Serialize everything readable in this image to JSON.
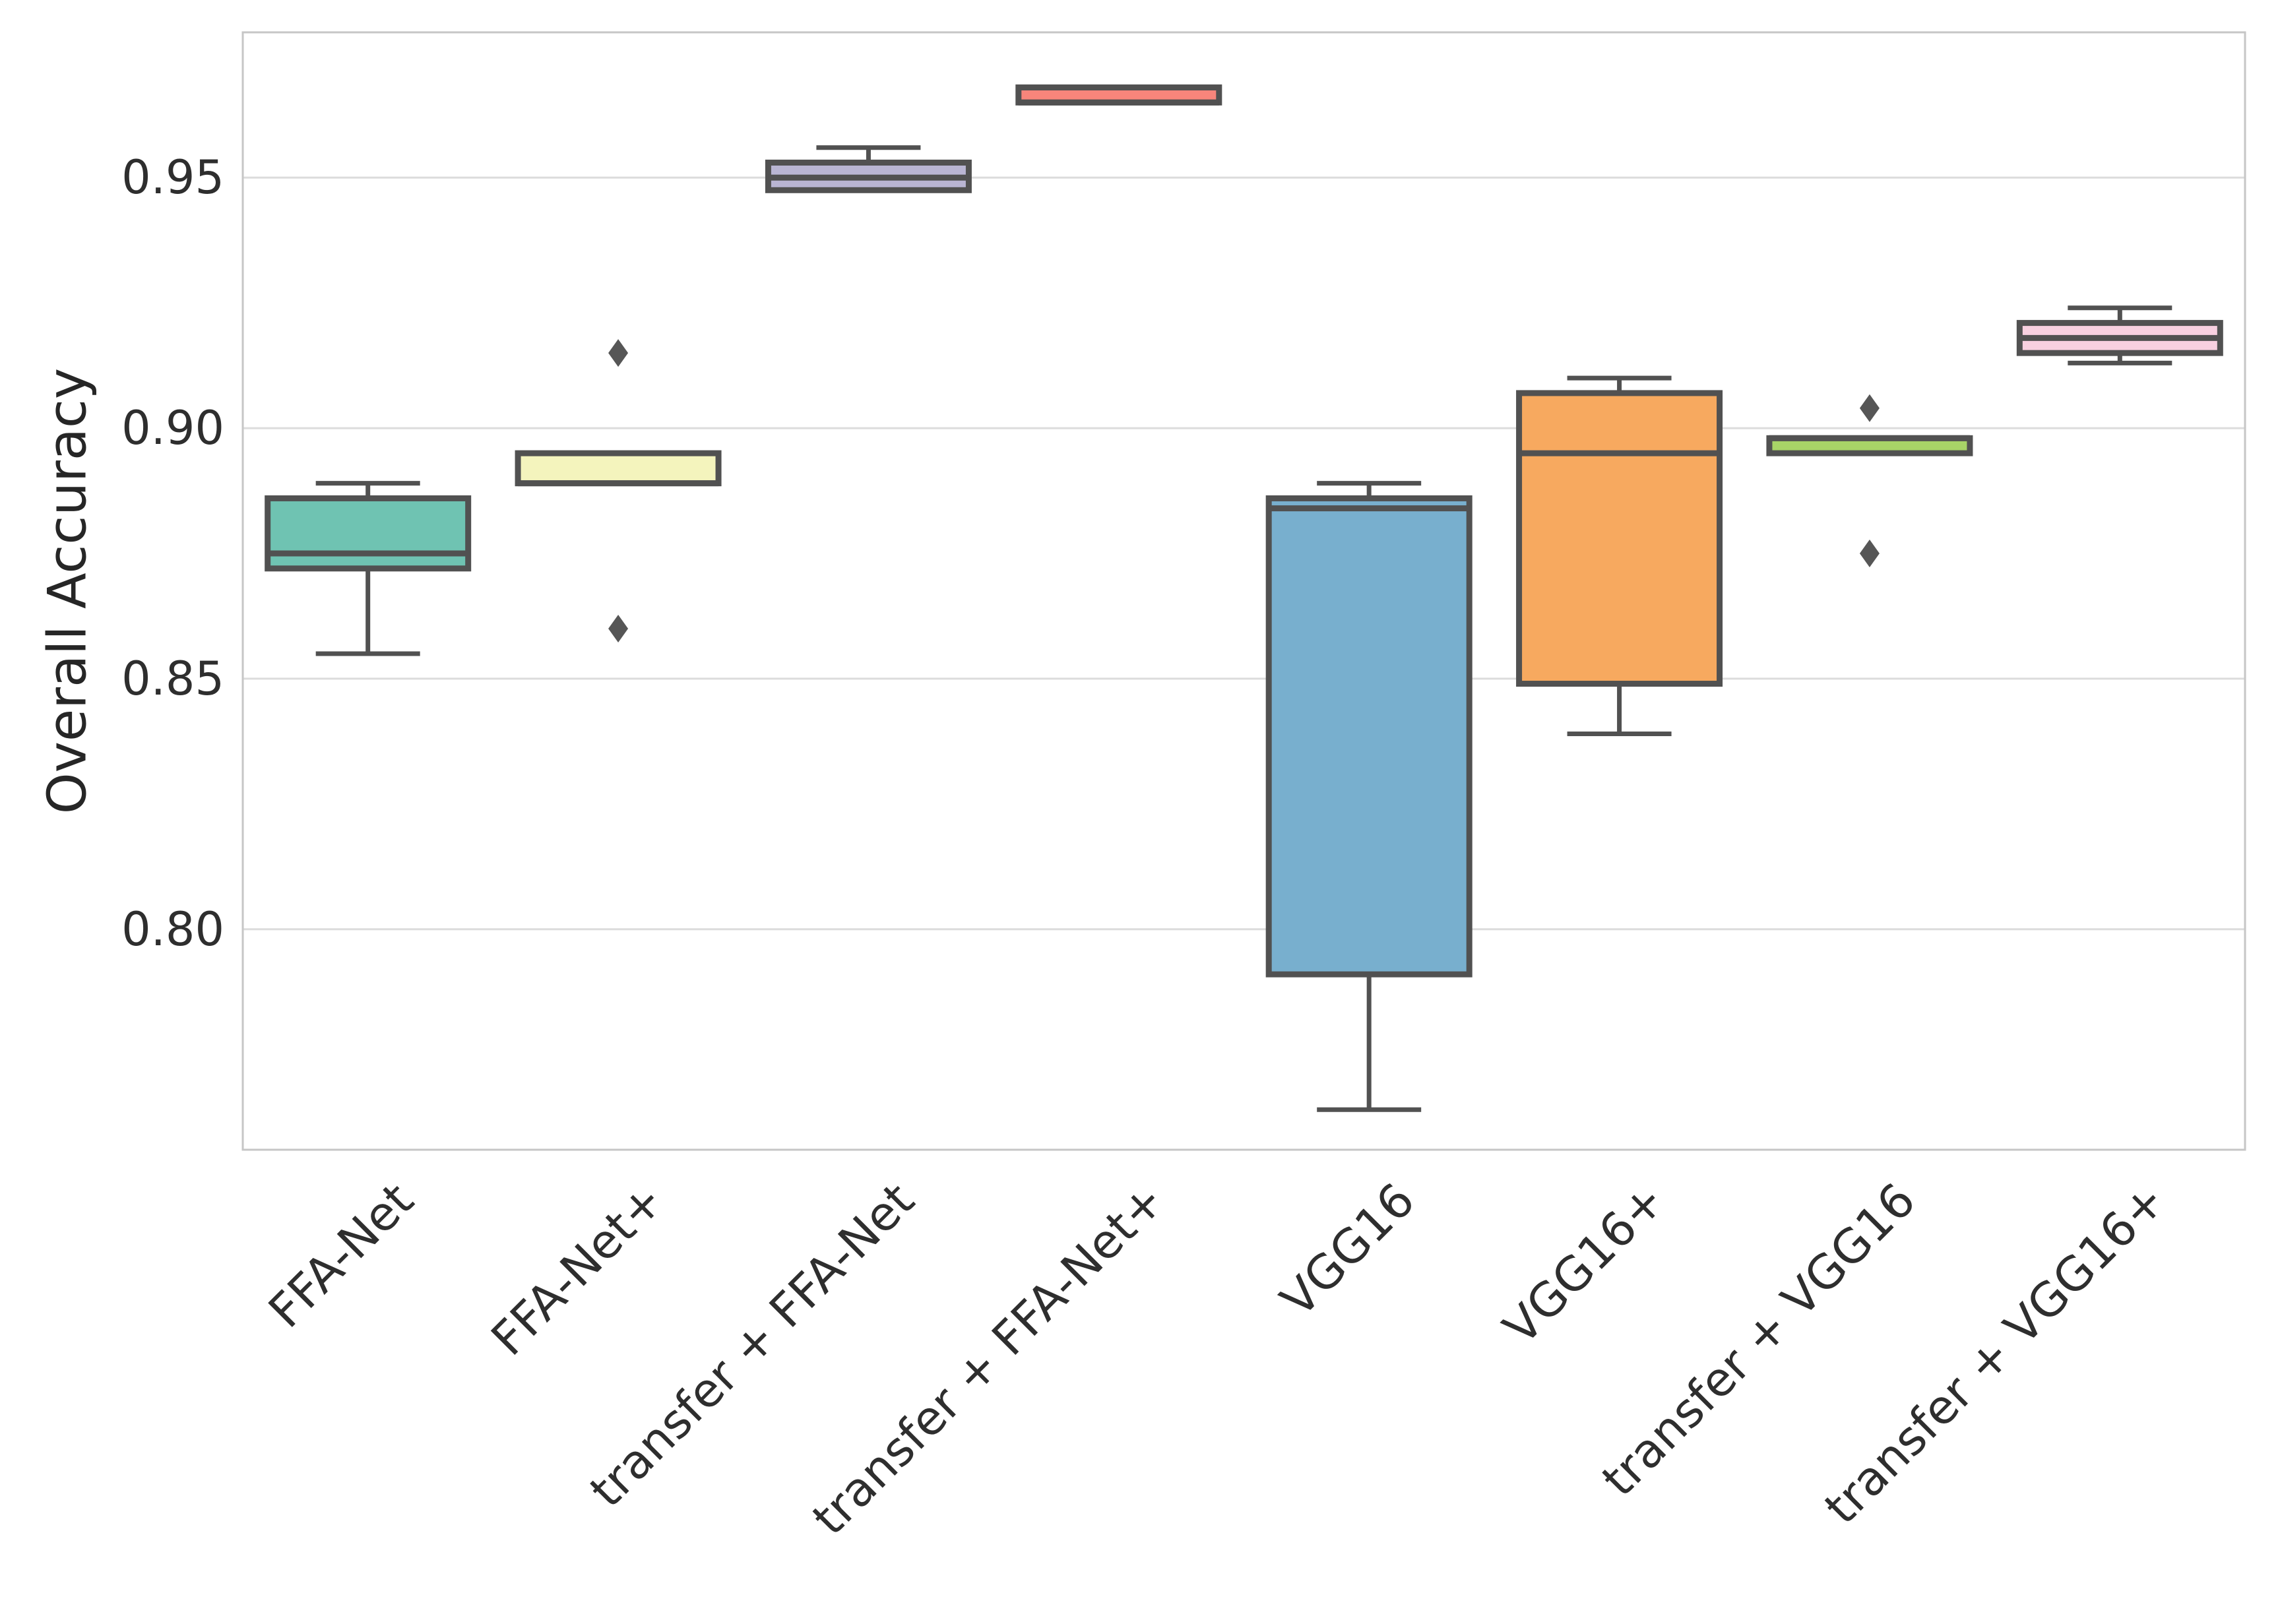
{
  "chart_data": {
    "type": "box",
    "title": "",
    "xlabel": "",
    "ylabel": "Overall Accuracy",
    "ylim": [
      0.756,
      0.979
    ],
    "grid": true,
    "legend": "none",
    "yticks": [
      0.95,
      0.9,
      0.85,
      0.8
    ],
    "ytick_labels": [
      "0.95",
      "0.90",
      "0.85",
      "0.80"
    ],
    "categories": [
      "FFA-Net",
      "FFA-Net+",
      "transfer + FFA-Net",
      "transfer + FFA-Net+",
      "VGG16",
      "VGG16+",
      "transfer + VGG16",
      "transfer + VGG16+"
    ],
    "series": [
      {
        "name": "FFA-Net",
        "color": "#6fc3b2",
        "whisker_low": 0.855,
        "q1": 0.872,
        "median": 0.875,
        "q3": 0.886,
        "whisker_high": 0.889,
        "outliers": []
      },
      {
        "name": "FFA-Net+",
        "color": "#f4f4bd",
        "whisker_low": null,
        "q1": 0.889,
        "median": 0.889,
        "q3": 0.895,
        "whisker_high": null,
        "outliers": [
          0.915,
          0.86
        ]
      },
      {
        "name": "transfer + FFA-Net",
        "color": "#b9b5d3",
        "whisker_low": null,
        "q1": 0.9475,
        "median": 0.95,
        "q3": 0.953,
        "whisker_high": 0.956,
        "outliers": []
      },
      {
        "name": "transfer + FFA-Net+",
        "color": "#f8857b",
        "whisker_low": null,
        "q1": 0.965,
        "median": 0.965,
        "q3": 0.968,
        "whisker_high": null,
        "outliers": []
      },
      {
        "name": "VGG16",
        "color": "#78afce",
        "whisker_low": 0.764,
        "q1": 0.791,
        "median": 0.884,
        "q3": 0.886,
        "whisker_high": 0.889,
        "outliers": []
      },
      {
        "name": "VGG16+",
        "color": "#f7a95f",
        "whisker_low": 0.839,
        "q1": 0.849,
        "median": 0.895,
        "q3": 0.907,
        "whisker_high": 0.91,
        "outliers": []
      },
      {
        "name": "transfer + VGG16",
        "color": "#a8d467",
        "whisker_low": null,
        "q1": 0.895,
        "median": 0.898,
        "q3": 0.898,
        "whisker_high": null,
        "outliers": [
          0.904,
          0.875
        ]
      },
      {
        "name": "transfer + VGG16+",
        "color": "#f8d0e0",
        "whisker_low": 0.913,
        "q1": 0.915,
        "median": 0.918,
        "q3": 0.921,
        "whisker_high": 0.924,
        "outliers": []
      }
    ],
    "style": {
      "line_color": "#515151",
      "grid_color": "#dcdcdc",
      "spine_color": "#c6c6c6",
      "background": "#ffffff"
    }
  }
}
